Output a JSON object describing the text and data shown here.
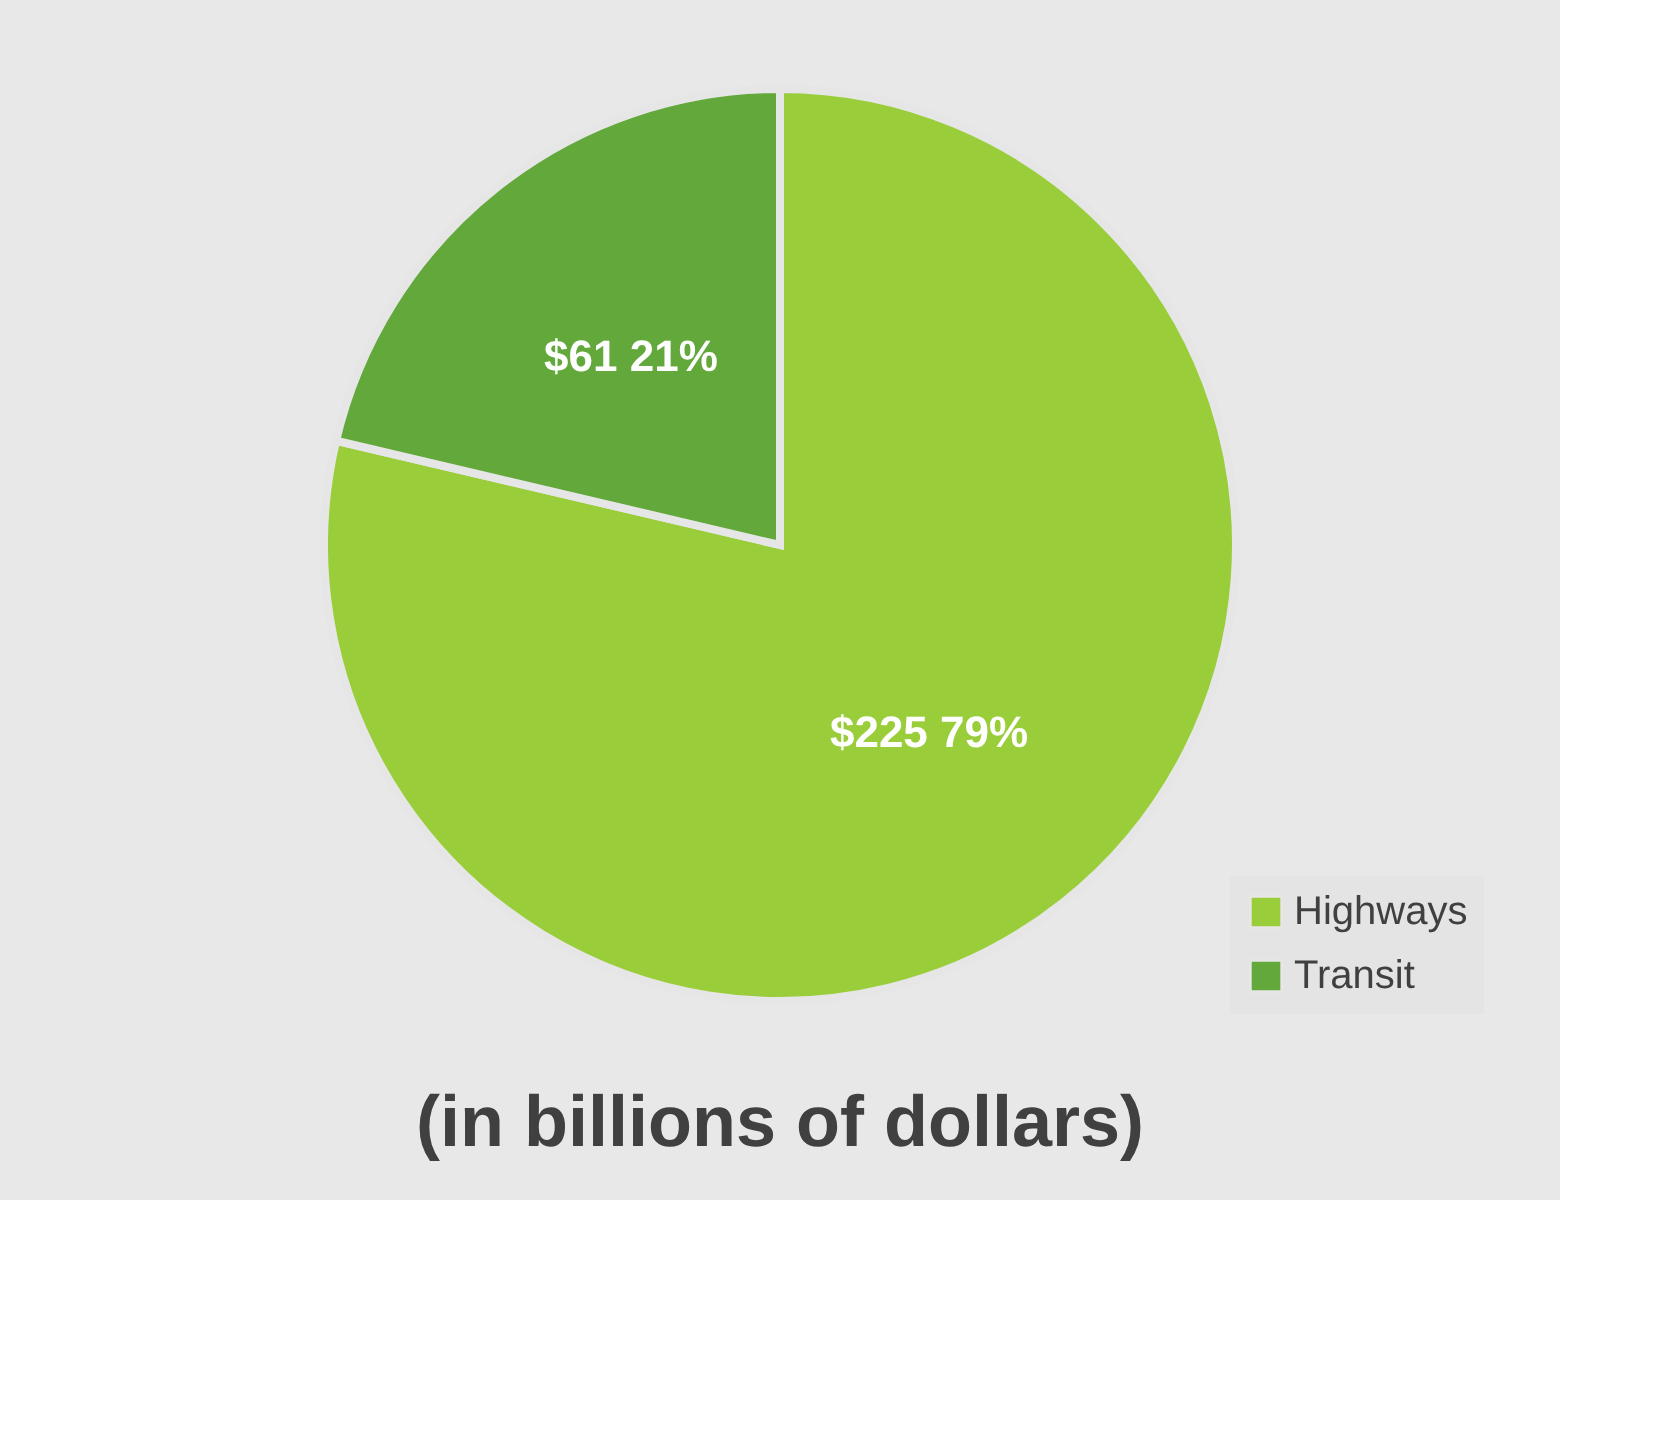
{
  "chart_data": {
    "type": "pie",
    "title": "(in billions of dollars)",
    "categories": [
      "Highways",
      "Transit"
    ],
    "values": [
      225,
      61
    ],
    "colors": [
      "#9acd3a",
      "#63a83a"
    ],
    "value_labels": [
      "$225 79%",
      "$61 21%"
    ],
    "legend": "bottom right"
  }
}
